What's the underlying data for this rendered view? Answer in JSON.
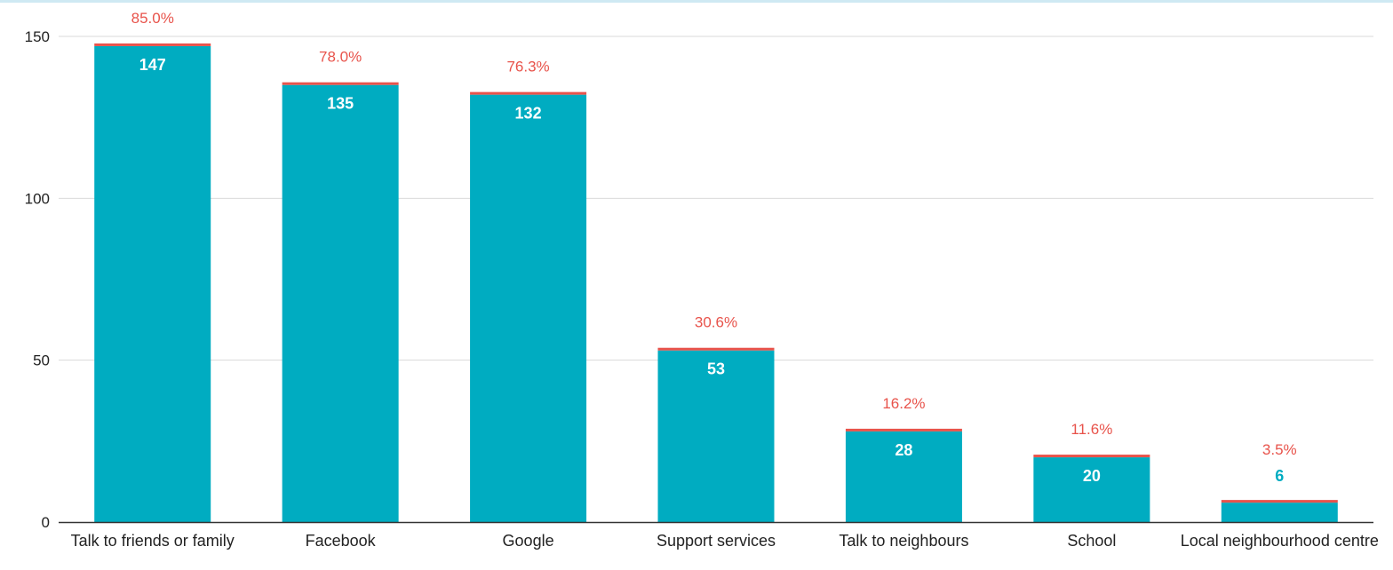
{
  "chart_data": {
    "type": "bar",
    "title": "",
    "xlabel": "",
    "ylabel": "",
    "ylim": [
      0,
      150
    ],
    "yticks": [
      0,
      50,
      100,
      150
    ],
    "grid": true,
    "legend": "none",
    "categories": [
      "Talk to friends or family",
      "Facebook",
      "Google",
      "Support services",
      "Talk to neighbours",
      "School",
      "Local neighbourhood centre"
    ],
    "values": [
      147,
      135,
      132,
      53,
      28,
      20,
      6
    ],
    "value_labels": [
      "147",
      "135",
      "132",
      "53",
      "28",
      "20",
      "6"
    ],
    "percent_labels": [
      "85.0%",
      "78.0%",
      "76.3%",
      "30.6%",
      "16.2%",
      "11.6%",
      "3.5%"
    ],
    "colors": {
      "bar": "#00acc1",
      "cap": "#e8534b",
      "percent_text": "#e8534b",
      "value_text_inside": "#ffffff",
      "value_text_outside": "#00acc1",
      "gridline": "#d9d9d9",
      "axis": "#333333"
    }
  }
}
